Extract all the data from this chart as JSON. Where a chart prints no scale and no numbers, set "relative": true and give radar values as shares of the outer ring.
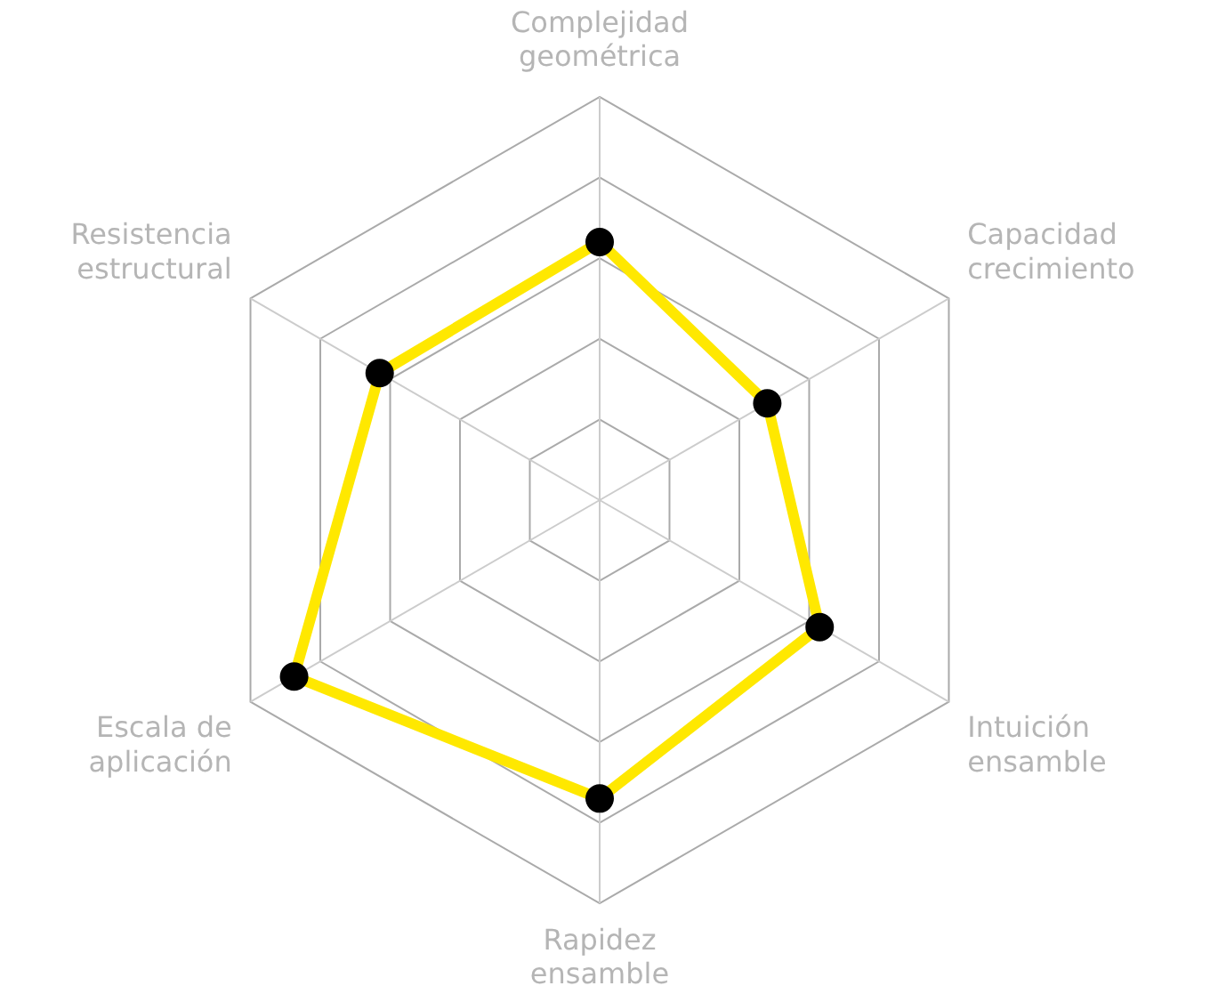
{
  "chart_data": {
    "type": "radar",
    "categories": [
      "Complejidad geométrica",
      "Capacidad crecimiento",
      "Intuición ensamble",
      "Rapidez ensamble",
      "Escala de aplicación",
      "Resistencia estructural"
    ],
    "relative": true,
    "grid": true,
    "legend": false,
    "marker": "circle",
    "line_style": "solid",
    "series": [
      {
        "color": "#ffe800",
        "values": [
          0.64,
          0.48,
          0.63,
          0.74,
          0.875,
          0.63
        ]
      }
    ]
  }
}
